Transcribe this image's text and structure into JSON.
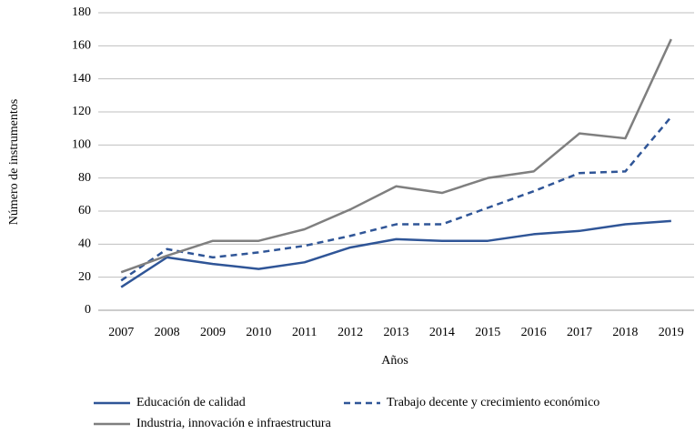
{
  "chart_data": {
    "type": "line",
    "xlabel": "Años",
    "ylabel": "Número de instrumentos",
    "categories": [
      "2007",
      "2008",
      "2009",
      "2010",
      "2011",
      "2012",
      "2013",
      "2014",
      "2015",
      "2016",
      "2017",
      "2018",
      "2019"
    ],
    "series": [
      {
        "name": "Educación de calidad",
        "color": "#2f5597",
        "dashed": false,
        "values": [
          14,
          32,
          28,
          25,
          29,
          38,
          43,
          42,
          42,
          46,
          48,
          52,
          54
        ]
      },
      {
        "name": "Trabajo decente y crecimiento económico",
        "color": "#2f5597",
        "dashed": true,
        "values": [
          18,
          37,
          32,
          35,
          39,
          45,
          52,
          52,
          62,
          72,
          83,
          84,
          117
        ]
      },
      {
        "name": "Industria, innovación e infraestructura",
        "color": "#7f7f7f",
        "dashed": false,
        "values": [
          23,
          33,
          42,
          42,
          49,
          61,
          75,
          71,
          80,
          84,
          107,
          104,
          164
        ]
      }
    ],
    "ylim": [
      0,
      180
    ],
    "yticks": [
      0,
      20,
      40,
      60,
      80,
      100,
      120,
      140,
      160,
      180
    ],
    "grid": true,
    "legend": "bottom"
  }
}
